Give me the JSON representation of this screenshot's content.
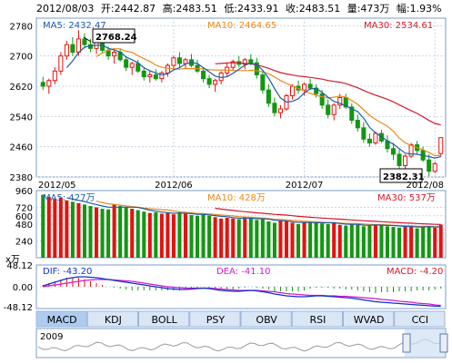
{
  "header": {
    "date": "2012/08/03",
    "open": "开:2442.87",
    "high": "高:2483.51",
    "low": "低:2433.91",
    "close": "收:2483.51",
    "volume": "量:473万",
    "change": "幅:1.93%"
  },
  "colors": {
    "up": "#e3130f",
    "down": "#139713",
    "ma5": "#1f5ca8",
    "ma10": "#e98a1c",
    "ma30": "#d21a2a",
    "dif": "#1030c8",
    "dea": "#d01ad0",
    "grid": "#c8d6e6",
    "tab_bg": "#d8e6f6",
    "tab_active": "#aecbf0"
  },
  "chart_data": [
    {
      "type": "candlestick",
      "title": "",
      "ylim": [
        2380,
        2800
      ],
      "yticks": [
        "2780",
        "2700",
        "2620",
        "2540",
        "2460",
        "2380"
      ],
      "ytick_values": [
        2780,
        2700,
        2620,
        2540,
        2460,
        2380
      ],
      "xticks": [
        "2012/05",
        "2012/06",
        "2012/07",
        "2012/08"
      ],
      "legend": {
        "ma5": "MA5: 2432.47",
        "ma10": "MA10: 2464.65",
        "ma30": "MA30: 2534.61"
      },
      "annotations": {
        "high": "2768.24",
        "low": "2382.31"
      },
      "ohlc": [
        [
          2630,
          2645,
          2610,
          2620
        ],
        [
          2620,
          2640,
          2600,
          2635
        ],
        [
          2635,
          2670,
          2625,
          2660
        ],
        [
          2660,
          2710,
          2650,
          2700
        ],
        [
          2700,
          2740,
          2690,
          2730
        ],
        [
          2730,
          2750,
          2700,
          2710
        ],
        [
          2710,
          2768,
          2700,
          2745
        ],
        [
          2745,
          2760,
          2720,
          2730
        ],
        [
          2730,
          2745,
          2710,
          2720
        ],
        [
          2720,
          2740,
          2705,
          2735
        ],
        [
          2735,
          2750,
          2710,
          2715
        ],
        [
          2715,
          2725,
          2690,
          2700
        ],
        [
          2700,
          2715,
          2680,
          2710
        ],
        [
          2710,
          2720,
          2685,
          2690
        ],
        [
          2690,
          2700,
          2660,
          2670
        ],
        [
          2670,
          2685,
          2650,
          2680
        ],
        [
          2680,
          2690,
          2655,
          2660
        ],
        [
          2660,
          2670,
          2635,
          2645
        ],
        [
          2645,
          2660,
          2630,
          2650
        ],
        [
          2650,
          2665,
          2635,
          2640
        ],
        [
          2640,
          2660,
          2630,
          2655
        ],
        [
          2655,
          2680,
          2645,
          2675
        ],
        [
          2675,
          2700,
          2665,
          2695
        ],
        [
          2695,
          2710,
          2670,
          2680
        ],
        [
          2680,
          2695,
          2665,
          2690
        ],
        [
          2690,
          2705,
          2670,
          2675
        ],
        [
          2675,
          2690,
          2655,
          2660
        ],
        [
          2660,
          2670,
          2630,
          2640
        ],
        [
          2640,
          2650,
          2615,
          2625
        ],
        [
          2625,
          2640,
          2605,
          2635
        ],
        [
          2635,
          2660,
          2625,
          2655
        ],
        [
          2655,
          2680,
          2645,
          2670
        ],
        [
          2670,
          2690,
          2660,
          2685
        ],
        [
          2685,
          2700,
          2670,
          2678
        ],
        [
          2678,
          2695,
          2665,
          2690
        ],
        [
          2690,
          2705,
          2675,
          2682
        ],
        [
          2682,
          2695,
          2640,
          2650
        ],
        [
          2650,
          2660,
          2600,
          2610
        ],
        [
          2610,
          2625,
          2565,
          2575
        ],
        [
          2575,
          2590,
          2540,
          2550
        ],
        [
          2550,
          2570,
          2535,
          2560
        ],
        [
          2560,
          2600,
          2555,
          2595
        ],
        [
          2595,
          2625,
          2585,
          2620
        ],
        [
          2620,
          2635,
          2600,
          2610
        ],
        [
          2610,
          2630,
          2595,
          2625
        ],
        [
          2625,
          2640,
          2610,
          2615
        ],
        [
          2615,
          2625,
          2590,
          2600
        ],
        [
          2600,
          2610,
          2560,
          2570
        ],
        [
          2570,
          2585,
          2535,
          2545
        ],
        [
          2545,
          2575,
          2530,
          2570
        ],
        [
          2570,
          2600,
          2560,
          2590
        ],
        [
          2590,
          2600,
          2560,
          2565
        ],
        [
          2565,
          2575,
          2520,
          2530
        ],
        [
          2530,
          2545,
          2500,
          2510
        ],
        [
          2510,
          2525,
          2470,
          2480
        ],
        [
          2480,
          2495,
          2460,
          2470
        ],
        [
          2470,
          2500,
          2465,
          2495
        ],
        [
          2495,
          2505,
          2470,
          2475
        ],
        [
          2475,
          2490,
          2445,
          2455
        ],
        [
          2455,
          2470,
          2425,
          2440
        ],
        [
          2440,
          2455,
          2400,
          2410
        ],
        [
          2410,
          2440,
          2395,
          2435
        ],
        [
          2435,
          2470,
          2430,
          2465
        ],
        [
          2465,
          2475,
          2440,
          2450
        ],
        [
          2450,
          2460,
          2420,
          2425
        ],
        [
          2425,
          2440,
          2382,
          2395
        ],
        [
          2395,
          2420,
          2390,
          2415
        ],
        [
          2442,
          2484,
          2434,
          2484
        ]
      ]
    },
    {
      "type": "bar",
      "title": "",
      "ylim": [
        0,
        960
      ],
      "yticks": [
        "960",
        "720",
        "600",
        "480",
        "240"
      ],
      "ytick_values": [
        960,
        720,
        600,
        480,
        240
      ],
      "unit": "x万",
      "legend": {
        "ma5": "MA5: 427万",
        "ma10": "MA10: 428万",
        "ma30": "MA30: 537万"
      },
      "values": [
        900,
        870,
        840,
        860,
        820,
        800,
        780,
        760,
        740,
        720,
        700,
        690,
        760,
        740,
        720,
        700,
        680,
        660,
        640,
        650,
        630,
        640,
        620,
        650,
        630,
        610,
        600,
        620,
        600,
        580,
        560,
        570,
        560,
        550,
        580,
        560,
        540,
        560,
        520,
        500,
        530,
        520,
        500,
        480,
        500,
        520,
        510,
        490,
        480,
        500,
        470,
        460,
        480,
        470,
        450,
        460,
        480,
        470,
        450,
        440,
        430,
        450,
        460,
        420,
        440,
        450,
        430,
        473
      ]
    },
    {
      "type": "line",
      "title": "",
      "ylim": [
        -48.12,
        48.12
      ],
      "yticks": [
        "48.12",
        "0.00",
        "-48.12"
      ],
      "ytick_values": [
        48.12,
        0,
        -48.12
      ],
      "legend": {
        "dif": "DIF: -43.20",
        "dea": "DEA: -41.10",
        "macd": "MACD: -4.20"
      },
      "dif": [
        2,
        6,
        10,
        14,
        18,
        20,
        22,
        22,
        21,
        20,
        18,
        16,
        14,
        12,
        10,
        8,
        6,
        4,
        2,
        0,
        -2,
        -4,
        -5,
        -6,
        -6,
        -5,
        -4,
        -3,
        -4,
        -6,
        -8,
        -9,
        -10,
        -10,
        -9,
        -8,
        -9,
        -11,
        -13,
        -16,
        -18,
        -20,
        -21,
        -22,
        -22,
        -21,
        -20,
        -20,
        -21,
        -22,
        -23,
        -24,
        -25,
        -27,
        -29,
        -31,
        -33,
        -34,
        -35,
        -36,
        -37,
        -38,
        -39,
        -40,
        -41,
        -42,
        -43,
        -43.2
      ],
      "dea": [
        0,
        2,
        4,
        6,
        8,
        10,
        12,
        14,
        15,
        16,
        16,
        16,
        15,
        14,
        13,
        12,
        10,
        8,
        6,
        4,
        2,
        0,
        -1,
        -2,
        -3,
        -3,
        -3,
        -3,
        -3,
        -4,
        -5,
        -6,
        -7,
        -8,
        -8,
        -8,
        -8,
        -9,
        -10,
        -11,
        -13,
        -15,
        -16,
        -17,
        -18,
        -19,
        -19,
        -19,
        -20,
        -20,
        -21,
        -21,
        -22,
        -23,
        -24,
        -25,
        -26,
        -28,
        -29,
        -30,
        -32,
        -33,
        -34,
        -36,
        -37,
        -38,
        -40,
        -41.1
      ]
    }
  ],
  "tabs": [
    "MACD",
    "KDJ",
    "BOLL",
    "PSY",
    "OBV",
    "RSI",
    "WVAD",
    "CCI"
  ],
  "active_tab": 0,
  "navigator": {
    "year_label": "2009"
  }
}
